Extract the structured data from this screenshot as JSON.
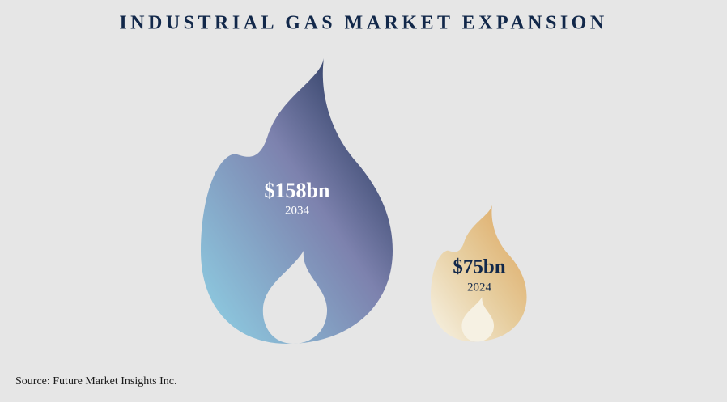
{
  "title": "INDUSTRIAL GAS MARKET EXPANSION",
  "items": [
    {
      "value": "$158bn",
      "year": "2034"
    },
    {
      "value": "$75bn",
      "year": "2024"
    }
  ],
  "source": "Source: Future Market Insights Inc."
}
